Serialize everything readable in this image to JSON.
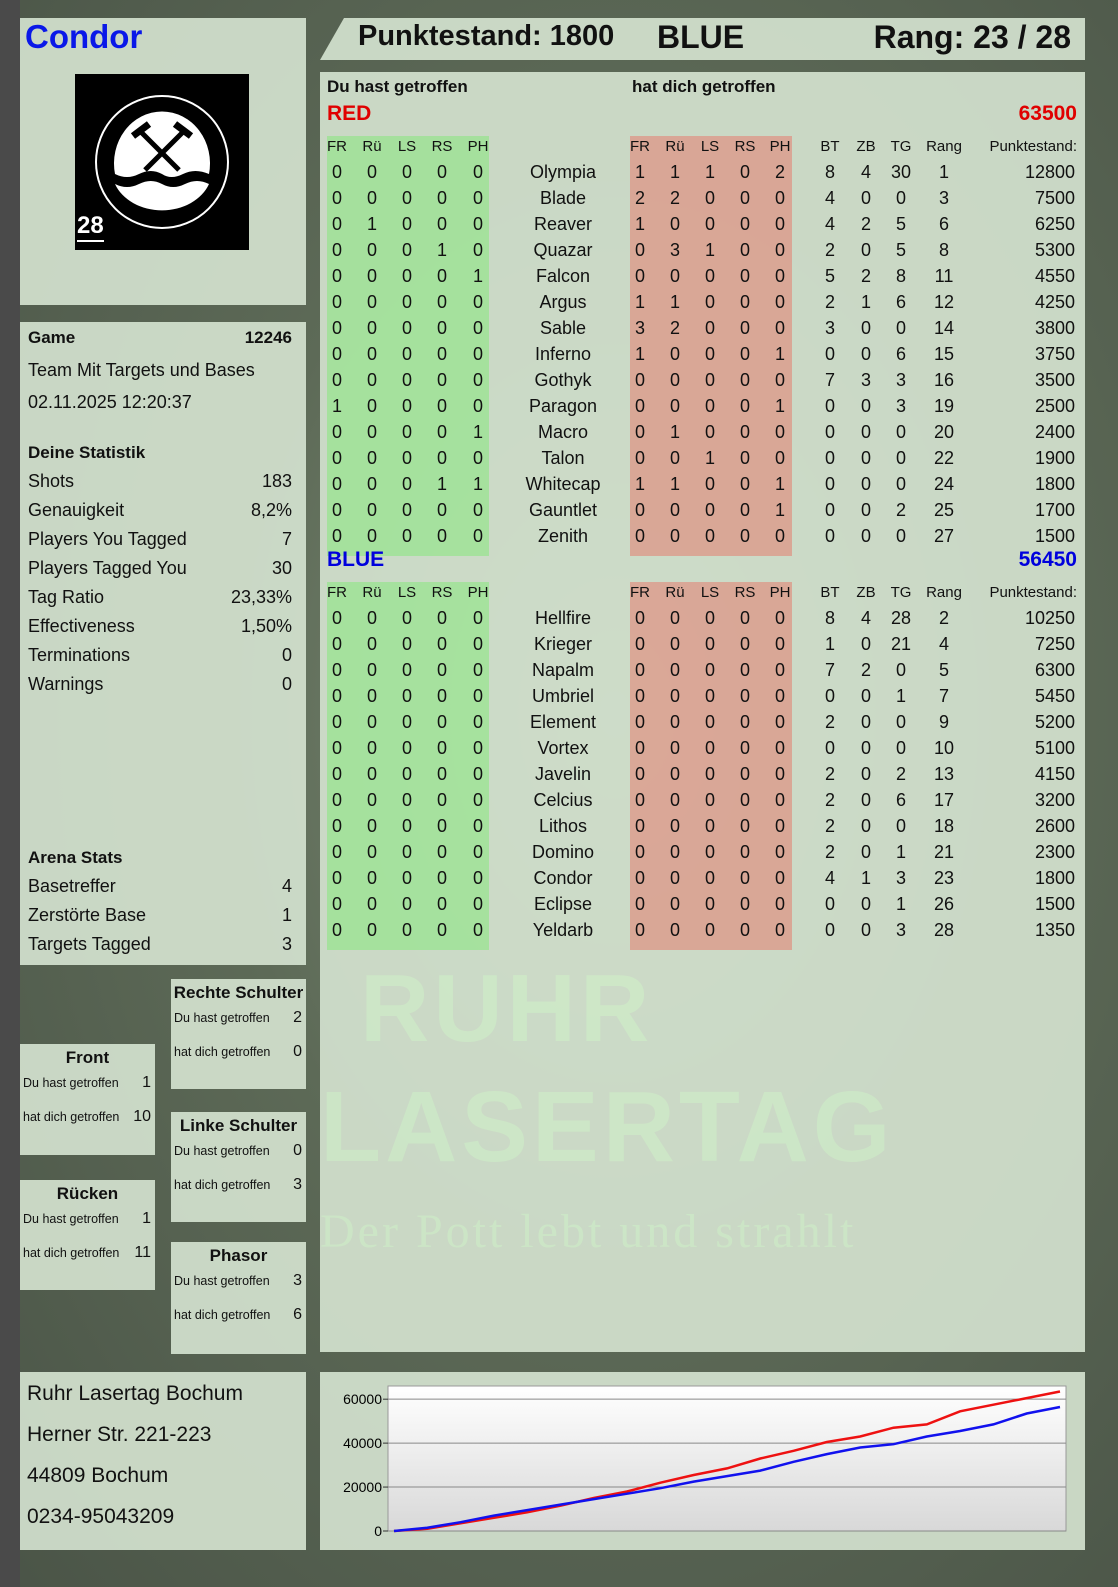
{
  "player": {
    "name": "Condor",
    "badge_number": "28",
    "logo_text": "RUHR LASERTAG"
  },
  "header": {
    "score": "Punktestand: 1800",
    "team": "BLUE",
    "rank": "Rang: 23 / 28"
  },
  "columns": {
    "you_hit": "Du hast getroffen",
    "hit_you": "hat dich getroffen"
  },
  "col_headers": {
    "hit": [
      "FR",
      "Rü",
      "LS",
      "RS",
      "PH"
    ],
    "stats": [
      "BT",
      "ZB",
      "TG",
      "Rang"
    ],
    "score": "Punktestand:"
  },
  "teams": [
    {
      "name": "RED",
      "total": "63500",
      "color": "#e00000",
      "players": [
        {
          "name": "Olympia",
          "you": [
            0,
            0,
            0,
            0,
            0
          ],
          "them": [
            1,
            1,
            1,
            0,
            2
          ],
          "bt": 8,
          "zb": 4,
          "tg": 30,
          "rank": 1,
          "score": 12800
        },
        {
          "name": "Blade",
          "you": [
            0,
            0,
            0,
            0,
            0
          ],
          "them": [
            2,
            2,
            0,
            0,
            0
          ],
          "bt": 4,
          "zb": 0,
          "tg": 0,
          "rank": 3,
          "score": 7500
        },
        {
          "name": "Reaver",
          "you": [
            0,
            1,
            0,
            0,
            0
          ],
          "them": [
            1,
            0,
            0,
            0,
            0
          ],
          "bt": 4,
          "zb": 2,
          "tg": 5,
          "rank": 6,
          "score": 6250
        },
        {
          "name": "Quazar",
          "you": [
            0,
            0,
            0,
            1,
            0
          ],
          "them": [
            0,
            3,
            1,
            0,
            0
          ],
          "bt": 2,
          "zb": 0,
          "tg": 5,
          "rank": 8,
          "score": 5300
        },
        {
          "name": "Falcon",
          "you": [
            0,
            0,
            0,
            0,
            1
          ],
          "them": [
            0,
            0,
            0,
            0,
            0
          ],
          "bt": 5,
          "zb": 2,
          "tg": 8,
          "rank": 11,
          "score": 4550
        },
        {
          "name": "Argus",
          "you": [
            0,
            0,
            0,
            0,
            0
          ],
          "them": [
            1,
            1,
            0,
            0,
            0
          ],
          "bt": 2,
          "zb": 1,
          "tg": 6,
          "rank": 12,
          "score": 4250
        },
        {
          "name": "Sable",
          "you": [
            0,
            0,
            0,
            0,
            0
          ],
          "them": [
            3,
            2,
            0,
            0,
            0
          ],
          "bt": 3,
          "zb": 0,
          "tg": 0,
          "rank": 14,
          "score": 3800
        },
        {
          "name": "Inferno",
          "you": [
            0,
            0,
            0,
            0,
            0
          ],
          "them": [
            1,
            0,
            0,
            0,
            1
          ],
          "bt": 0,
          "zb": 0,
          "tg": 6,
          "rank": 15,
          "score": 3750
        },
        {
          "name": "Gothyk",
          "you": [
            0,
            0,
            0,
            0,
            0
          ],
          "them": [
            0,
            0,
            0,
            0,
            0
          ],
          "bt": 7,
          "zb": 3,
          "tg": 3,
          "rank": 16,
          "score": 3500
        },
        {
          "name": "Paragon",
          "you": [
            1,
            0,
            0,
            0,
            0
          ],
          "them": [
            0,
            0,
            0,
            0,
            1
          ],
          "bt": 0,
          "zb": 0,
          "tg": 3,
          "rank": 19,
          "score": 2500
        },
        {
          "name": "Macro",
          "you": [
            0,
            0,
            0,
            0,
            1
          ],
          "them": [
            0,
            1,
            0,
            0,
            0
          ],
          "bt": 0,
          "zb": 0,
          "tg": 0,
          "rank": 20,
          "score": 2400
        },
        {
          "name": "Talon",
          "you": [
            0,
            0,
            0,
            0,
            0
          ],
          "them": [
            0,
            0,
            1,
            0,
            0
          ],
          "bt": 0,
          "zb": 0,
          "tg": 0,
          "rank": 22,
          "score": 1900
        },
        {
          "name": "Whitecap",
          "you": [
            0,
            0,
            0,
            1,
            1
          ],
          "them": [
            1,
            1,
            0,
            0,
            1
          ],
          "bt": 0,
          "zb": 0,
          "tg": 0,
          "rank": 24,
          "score": 1800
        },
        {
          "name": "Gauntlet",
          "you": [
            0,
            0,
            0,
            0,
            0
          ],
          "them": [
            0,
            0,
            0,
            0,
            1
          ],
          "bt": 0,
          "zb": 0,
          "tg": 2,
          "rank": 25,
          "score": 1700
        },
        {
          "name": "Zenith",
          "you": [
            0,
            0,
            0,
            0,
            0
          ],
          "them": [
            0,
            0,
            0,
            0,
            0
          ],
          "bt": 0,
          "zb": 0,
          "tg": 0,
          "rank": 27,
          "score": 1500
        }
      ]
    },
    {
      "name": "BLUE",
      "total": "56450",
      "color": "#0000dd",
      "players": [
        {
          "name": "Hellfire",
          "you": [
            0,
            0,
            0,
            0,
            0
          ],
          "them": [
            0,
            0,
            0,
            0,
            0
          ],
          "bt": 8,
          "zb": 4,
          "tg": 28,
          "rank": 2,
          "score": 10250
        },
        {
          "name": "Krieger",
          "you": [
            0,
            0,
            0,
            0,
            0
          ],
          "them": [
            0,
            0,
            0,
            0,
            0
          ],
          "bt": 1,
          "zb": 0,
          "tg": 21,
          "rank": 4,
          "score": 7250
        },
        {
          "name": "Napalm",
          "you": [
            0,
            0,
            0,
            0,
            0
          ],
          "them": [
            0,
            0,
            0,
            0,
            0
          ],
          "bt": 7,
          "zb": 2,
          "tg": 0,
          "rank": 5,
          "score": 6300
        },
        {
          "name": "Umbriel",
          "you": [
            0,
            0,
            0,
            0,
            0
          ],
          "them": [
            0,
            0,
            0,
            0,
            0
          ],
          "bt": 0,
          "zb": 0,
          "tg": 1,
          "rank": 7,
          "score": 5450
        },
        {
          "name": "Element",
          "you": [
            0,
            0,
            0,
            0,
            0
          ],
          "them": [
            0,
            0,
            0,
            0,
            0
          ],
          "bt": 2,
          "zb": 0,
          "tg": 0,
          "rank": 9,
          "score": 5200
        },
        {
          "name": "Vortex",
          "you": [
            0,
            0,
            0,
            0,
            0
          ],
          "them": [
            0,
            0,
            0,
            0,
            0
          ],
          "bt": 0,
          "zb": 0,
          "tg": 0,
          "rank": 10,
          "score": 5100
        },
        {
          "name": "Javelin",
          "you": [
            0,
            0,
            0,
            0,
            0
          ],
          "them": [
            0,
            0,
            0,
            0,
            0
          ],
          "bt": 2,
          "zb": 0,
          "tg": 2,
          "rank": 13,
          "score": 4150
        },
        {
          "name": "Celcius",
          "you": [
            0,
            0,
            0,
            0,
            0
          ],
          "them": [
            0,
            0,
            0,
            0,
            0
          ],
          "bt": 2,
          "zb": 0,
          "tg": 6,
          "rank": 17,
          "score": 3200
        },
        {
          "name": "Lithos",
          "you": [
            0,
            0,
            0,
            0,
            0
          ],
          "them": [
            0,
            0,
            0,
            0,
            0
          ],
          "bt": 2,
          "zb": 0,
          "tg": 0,
          "rank": 18,
          "score": 2600
        },
        {
          "name": "Domino",
          "you": [
            0,
            0,
            0,
            0,
            0
          ],
          "them": [
            0,
            0,
            0,
            0,
            0
          ],
          "bt": 2,
          "zb": 0,
          "tg": 1,
          "rank": 21,
          "score": 2300
        },
        {
          "name": "Condor",
          "you": [
            0,
            0,
            0,
            0,
            0
          ],
          "them": [
            0,
            0,
            0,
            0,
            0
          ],
          "bt": 4,
          "zb": 1,
          "tg": 3,
          "rank": 23,
          "score": 1800
        },
        {
          "name": "Eclipse",
          "you": [
            0,
            0,
            0,
            0,
            0
          ],
          "them": [
            0,
            0,
            0,
            0,
            0
          ],
          "bt": 0,
          "zb": 0,
          "tg": 1,
          "rank": 26,
          "score": 1500
        },
        {
          "name": "Yeldarb",
          "you": [
            0,
            0,
            0,
            0,
            0
          ],
          "them": [
            0,
            0,
            0,
            0,
            0
          ],
          "bt": 0,
          "zb": 0,
          "tg": 3,
          "rank": 28,
          "score": 1350
        }
      ]
    }
  ],
  "game": {
    "label": "Game",
    "id": "12246",
    "mode": "Team Mit Targets und Bases",
    "datetime": "02.11.2025 12:20:37"
  },
  "stats": {
    "title": "Deine Statistik",
    "rows": [
      {
        "label": "Shots",
        "value": "183"
      },
      {
        "label": "Genauigkeit",
        "value": "8,2%"
      },
      {
        "label": "Players You Tagged",
        "value": "7"
      },
      {
        "label": "Players Tagged You",
        "value": "30"
      },
      {
        "label": "Tag Ratio",
        "value": "23,33%"
      },
      {
        "label": "Effectiveness",
        "value": "1,50%"
      },
      {
        "label": "Terminations",
        "value": "0"
      },
      {
        "label": "Warnings",
        "value": "0"
      }
    ]
  },
  "arena": {
    "title": "Arena Stats",
    "rows": [
      {
        "label": "Basetreffer",
        "value": "4"
      },
      {
        "label": "Zerstörte Base",
        "value": "1"
      },
      {
        "label": "Targets Tagged",
        "value": "3"
      }
    ]
  },
  "hitzones": {
    "you_label": "Du hast getroffen",
    "them_label": "hat dich getroffen",
    "zones": [
      {
        "name": "Front",
        "you": "1",
        "them": "10"
      },
      {
        "name": "Rücken",
        "you": "1",
        "them": "11"
      },
      {
        "name": "Rechte Schulter",
        "you": "2",
        "them": "0"
      },
      {
        "name": "Linke Schulter",
        "you": "0",
        "them": "3"
      },
      {
        "name": "Phasor",
        "you": "3",
        "them": "6"
      }
    ]
  },
  "address": [
    "Ruhr Lasertag Bochum",
    "Herner Str. 221-223",
    "44809 Bochum",
    "0234-95043209"
  ],
  "watermark": {
    "line1": "RUHR",
    "line2": "LASERTAG",
    "slogan": "Der Pott lebt und strahlt"
  },
  "chart_data": {
    "type": "line",
    "ylim": [
      0,
      66000
    ],
    "yticks": [
      0,
      20000,
      40000,
      60000
    ],
    "grid": true,
    "series": [
      {
        "color": "#ee1111",
        "values": [
          0,
          1000,
          3500,
          6000,
          8500,
          11500,
          15000,
          18000,
          22000,
          25500,
          28500,
          33000,
          36500,
          40500,
          43000,
          47000,
          48500,
          54500,
          57500,
          60500,
          63500
        ]
      },
      {
        "color": "#1111ee",
        "values": [
          0,
          1500,
          4000,
          7000,
          9500,
          12000,
          14500,
          17000,
          19500,
          22500,
          25000,
          27500,
          31500,
          35000,
          38000,
          39500,
          43000,
          45500,
          48500,
          53500,
          56450
        ]
      }
    ]
  }
}
